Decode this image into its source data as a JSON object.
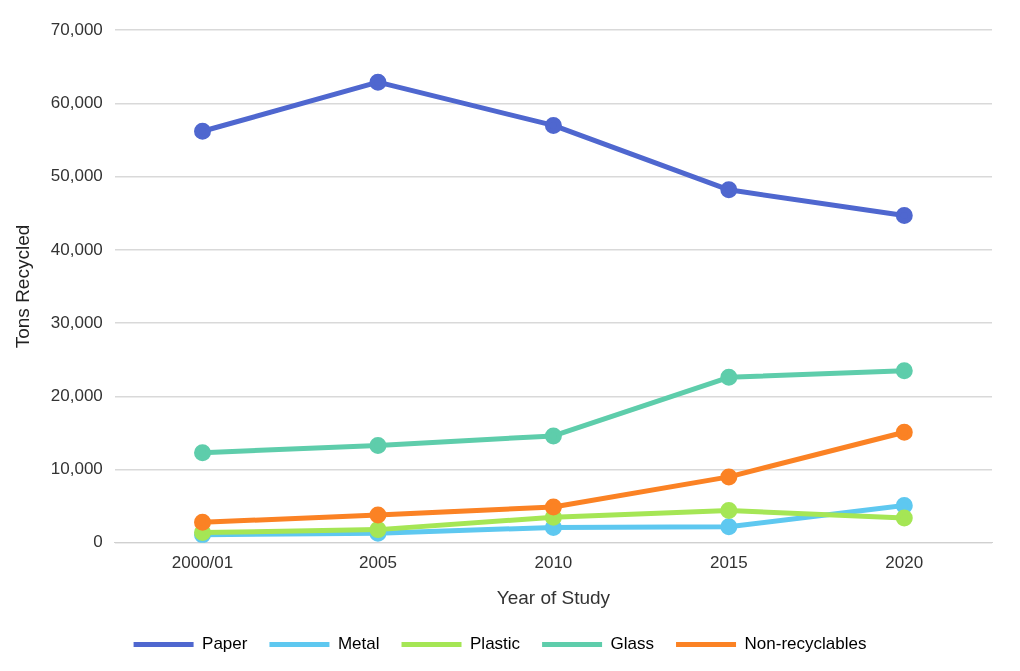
{
  "chart_data": {
    "type": "line",
    "xlabel": "Year of Study",
    "ylabel": "Tons Recycled",
    "categories": [
      "2000/01",
      "2005",
      "2010",
      "2015",
      "2020"
    ],
    "series": [
      {
        "name": "Paper",
        "color": "#4f67cf",
        "values": [
          56200,
          62900,
          57000,
          48200,
          44700
        ]
      },
      {
        "name": "Metal",
        "color": "#5ec8f0",
        "values": [
          1100,
          1300,
          2100,
          2200,
          5100
        ]
      },
      {
        "name": "Plastic",
        "color": "#a5e655",
        "values": [
          1400,
          1800,
          3500,
          4400,
          3400
        ]
      },
      {
        "name": "Glass",
        "color": "#5ecdab",
        "values": [
          12300,
          13300,
          14600,
          22600,
          23500
        ]
      },
      {
        "name": "Non-recyclables",
        "color": "#fb8224",
        "values": [
          2800,
          3800,
          4900,
          9000,
          15100
        ]
      }
    ],
    "ylim": [
      0,
      70000
    ],
    "yticks": [
      {
        "value": 0,
        "label": "0"
      },
      {
        "value": 10000,
        "label": "10,000"
      },
      {
        "value": 20000,
        "label": "20,000"
      },
      {
        "value": 30000,
        "label": "30,000"
      },
      {
        "value": 40000,
        "label": "40,000"
      },
      {
        "value": 50000,
        "label": "50,000"
      },
      {
        "value": 60000,
        "label": "60,000"
      },
      {
        "value": 70000,
        "label": "70,000"
      }
    ],
    "grid": "y",
    "legend": "bottom",
    "marker": "circle",
    "line_style": "solid"
  }
}
